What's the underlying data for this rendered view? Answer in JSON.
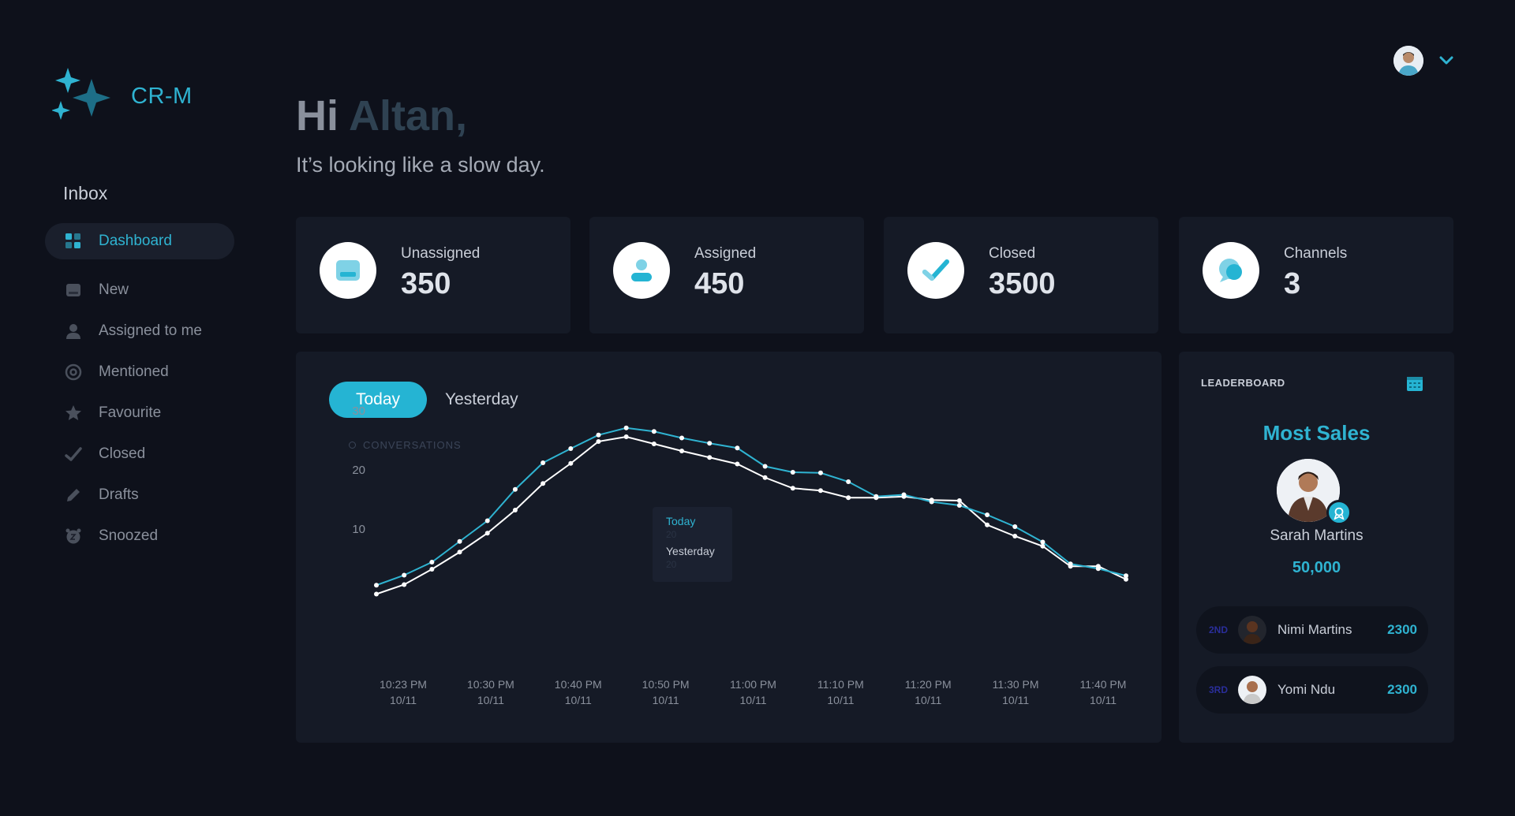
{
  "brand": {
    "name": "CR-M"
  },
  "sidebar": {
    "section_title": "Inbox",
    "items": [
      {
        "label": "Dashboard",
        "icon": "dashboard-icon",
        "active": true
      },
      {
        "label": "New",
        "icon": "inbox-tray-icon"
      },
      {
        "label": "Assigned to me",
        "icon": "user-icon"
      },
      {
        "label": "Mentioned",
        "icon": "at-icon"
      },
      {
        "label": "Favourite",
        "icon": "star-icon"
      },
      {
        "label": "Closed",
        "icon": "check-icon"
      },
      {
        "label": "Drafts",
        "icon": "pencil-icon"
      },
      {
        "label": "Snoozed",
        "icon": "alarm-clock-icon"
      }
    ]
  },
  "header": {
    "greeting_prefix": "Hi",
    "user_name": "Altan,",
    "subtitle": "It’s looking like a slow day."
  },
  "stats": [
    {
      "label": "Unassigned",
      "value": "350",
      "icon": "inbox-tray-icon"
    },
    {
      "label": "Assigned",
      "value": "450",
      "icon": "user-icon"
    },
    {
      "label": "Closed",
      "value": "3500",
      "icon": "check-icon"
    },
    {
      "label": "Channels",
      "value": "3",
      "icon": "chat-bubble-icon"
    }
  ],
  "chart": {
    "tabs": [
      "Today",
      "Yesterday"
    ],
    "active_tab": "Today",
    "legend_label": "CONVERSATIONS",
    "tooltip": {
      "today_label": "Today",
      "today_value": "20",
      "yesterday_label": "Yesterday",
      "yesterday_value": "20"
    }
  },
  "chart_data": {
    "type": "line",
    "title": "",
    "ylabel": "CONVERSATIONS",
    "ylim": [
      0,
      32
    ],
    "yticks": [
      10,
      20,
      30
    ],
    "grid": false,
    "x_tick_labels": [
      [
        "10:23 PM",
        "10/11"
      ],
      [
        "10:30 PM",
        "10/11"
      ],
      [
        "10:40 PM",
        "10/11"
      ],
      [
        "10:50 PM",
        "10/11"
      ],
      [
        "11:00 PM",
        "10/11"
      ],
      [
        "11:10 PM",
        "10/11"
      ],
      [
        "11:20 PM",
        "10/11"
      ],
      [
        "11:30 PM",
        "10/11"
      ],
      [
        "11:40 PM",
        "10/11"
      ]
    ],
    "series": [
      {
        "name": "Today",
        "color": "#2fb3d1",
        "values": [
          0.5,
          2.2,
          4.4,
          7.9,
          11.4,
          16.7,
          21.2,
          23.6,
          25.9,
          27.1,
          26.5,
          25.4,
          24.5,
          23.7,
          20.6,
          19.6,
          19.5,
          18.0,
          15.5,
          15.8,
          14.6,
          14.0,
          12.4,
          10.4,
          7.8,
          4.1,
          3.3,
          2.1
        ]
      },
      {
        "name": "Yesterday",
        "color": "#ffffff",
        "values": [
          -1.0,
          0.6,
          3.2,
          6.1,
          9.3,
          13.2,
          17.7,
          21.1,
          24.8,
          25.6,
          24.4,
          23.2,
          22.1,
          21.0,
          18.7,
          16.9,
          16.5,
          15.3,
          15.3,
          15.5,
          14.9,
          14.8,
          10.7,
          8.8,
          7.1,
          3.7,
          3.7,
          1.5
        ]
      }
    ]
  },
  "leaderboard": {
    "title": "LEADERBOARD",
    "heading": "Most Sales",
    "top": {
      "name": "Sarah Martins",
      "amount": "50,000"
    },
    "rows": [
      {
        "rank": "2ND",
        "name": "Nimi Martins",
        "value": "2300"
      },
      {
        "rank": "3RD",
        "name": "Yomi Ndu",
        "value": "2300"
      }
    ]
  }
}
